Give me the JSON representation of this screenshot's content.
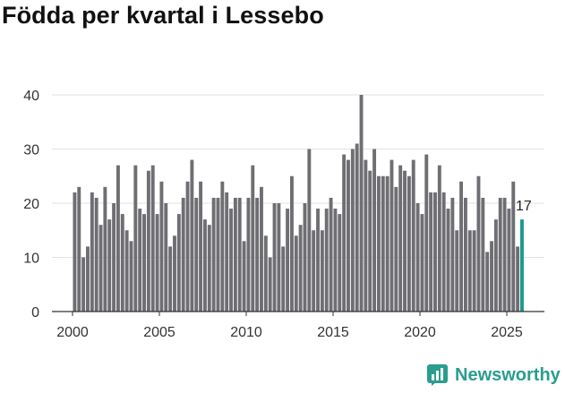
{
  "chart_data": {
    "type": "bar",
    "title": "Födda per kvartal i Lessebo",
    "xlabel": "",
    "ylabel": "",
    "ylim": [
      0,
      40
    ],
    "yticks": [
      0,
      10,
      20,
      30,
      40
    ],
    "xticks": [
      "2000",
      "2005",
      "2010",
      "2015",
      "2020",
      "2025"
    ],
    "grid": true,
    "series": [
      {
        "name": "Födda",
        "start_year": 2000,
        "start_quarter": 1,
        "values": [
          22,
          23,
          10,
          12,
          22,
          21,
          16,
          23,
          17,
          20,
          27,
          18,
          15,
          13,
          27,
          19,
          18,
          26,
          27,
          18,
          24,
          20,
          12,
          14,
          18,
          21,
          24,
          28,
          21,
          24,
          17,
          16,
          21,
          21,
          24,
          22,
          19,
          21,
          21,
          13,
          21,
          27,
          21,
          23,
          14,
          10,
          20,
          20,
          12,
          19,
          25,
          14,
          16,
          20,
          30,
          15,
          19,
          15,
          19,
          21,
          19,
          18,
          29,
          28,
          30,
          31,
          40,
          28,
          26,
          30,
          25,
          25,
          25,
          28,
          23,
          27,
          26,
          25,
          28,
          20,
          18,
          29,
          22,
          22,
          27,
          22,
          19,
          21,
          15,
          24,
          21,
          15,
          15,
          25,
          21,
          11,
          13,
          17,
          21,
          21,
          19,
          24,
          12,
          17
        ]
      }
    ],
    "highlight": {
      "index": 103,
      "value": 17,
      "label": "17"
    },
    "colors": {
      "bar": "#6e6e73",
      "highlight": "#1a9a8c",
      "grid": "#e2e2e2",
      "axis": "#333333"
    }
  },
  "brand": {
    "name": "Newsworthy",
    "icon": "newsworthy-logo-icon",
    "color": "#2a9d8f"
  }
}
